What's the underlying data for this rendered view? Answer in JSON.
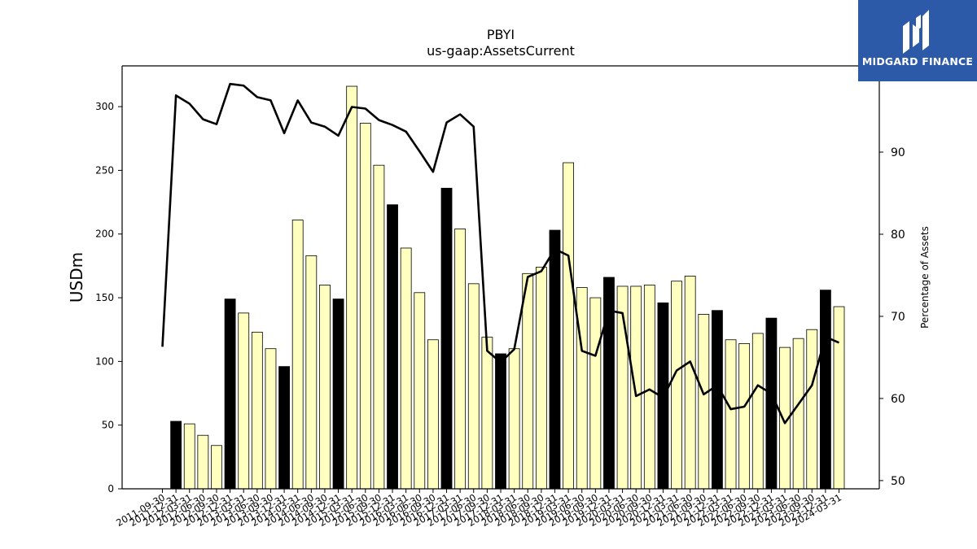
{
  "chart_data": {
    "type": "bar",
    "title": "PBYI",
    "subtitle": "us-gaap:AssetsCurrent",
    "ylabel": "USDm",
    "y2label": "Percentage of Assets",
    "ylim": [
      0,
      332
    ],
    "y2lim": [
      49,
      100.5
    ],
    "yticks": [
      0,
      50,
      100,
      150,
      200,
      250,
      300
    ],
    "y2ticks": [
      50,
      60,
      70,
      80,
      90
    ],
    "categories": [
      "2011-09-30",
      "2011-12-31",
      "2012-03-31",
      "2012-06-30",
      "2012-09-30",
      "2012-12-31",
      "2013-03-31",
      "2013-06-30",
      "2013-09-30",
      "2013-12-31",
      "2014-03-31",
      "2014-06-30",
      "2014-09-30",
      "2014-12-31",
      "2015-03-31",
      "2015-06-30",
      "2015-09-30",
      "2015-12-31",
      "2016-03-31",
      "2016-06-30",
      "2016-09-30",
      "2016-12-31",
      "2017-03-31",
      "2017-06-30",
      "2017-09-30",
      "2017-12-31",
      "2018-03-31",
      "2018-06-30",
      "2018-09-30",
      "2018-12-31",
      "2019-03-31",
      "2019-06-30",
      "2019-09-30",
      "2019-12-31",
      "2020-03-31",
      "2020-06-30",
      "2020-09-30",
      "2020-12-31",
      "2021-03-31",
      "2021-06-30",
      "2021-09-30",
      "2021-12-31",
      "2022-03-31",
      "2022-06-30",
      "2022-09-30",
      "2022-12-31",
      "2023-03-31",
      "2023-06-30",
      "2023-09-30",
      "2023-12-31",
      "2024-03-31"
    ],
    "series": [
      {
        "type": "bar",
        "values": [
          null,
          53,
          51,
          42,
          34,
          149,
          138,
          123,
          110,
          96,
          211,
          183,
          160,
          149,
          316,
          287,
          254,
          223,
          189,
          154,
          117,
          236,
          204,
          161,
          119,
          106,
          110,
          169,
          174,
          203,
          256,
          158,
          150,
          166,
          159,
          159,
          160,
          146,
          163,
          167,
          137,
          140,
          117,
          114,
          122,
          134,
          111,
          118,
          125,
          156,
          143
        ],
        "highlight": [
          false,
          true,
          false,
          false,
          false,
          true,
          false,
          false,
          false,
          true,
          false,
          false,
          false,
          true,
          false,
          false,
          false,
          true,
          false,
          false,
          false,
          true,
          false,
          false,
          false,
          true,
          false,
          false,
          false,
          true,
          false,
          false,
          false,
          true,
          false,
          false,
          false,
          true,
          false,
          false,
          false,
          true,
          false,
          false,
          false,
          true,
          false,
          false,
          false,
          true,
          false
        ],
        "color": "#ffffbf",
        "highlight_color": "#000000"
      },
      {
        "type": "line",
        "axis": "right",
        "values": [
          66.3,
          96.9,
          95.9,
          94.0,
          93.4,
          98.3,
          98.1,
          96.7,
          96.3,
          92.3,
          96.3,
          93.6,
          93.1,
          92.0,
          95.5,
          95.3,
          93.9,
          93.3,
          92.5,
          90.1,
          87.6,
          93.6,
          94.6,
          93.1,
          65.8,
          64.4,
          66.0,
          74.8,
          75.5,
          78.2,
          77.4,
          65.8,
          65.2,
          70.7,
          70.4,
          60.3,
          61.1,
          60.1,
          63.4,
          64.5,
          60.5,
          61.6,
          58.7,
          59.0,
          61.6,
          60.6,
          57.0,
          59.3,
          61.6,
          67.5,
          66.8
        ],
        "color": "#000000"
      }
    ],
    "grid": false,
    "legend": "none"
  },
  "logo": {
    "name": "MIDGARD FINANCE",
    "bg_color": "#2d5aa8",
    "icon": "midgard-logo-icon"
  }
}
